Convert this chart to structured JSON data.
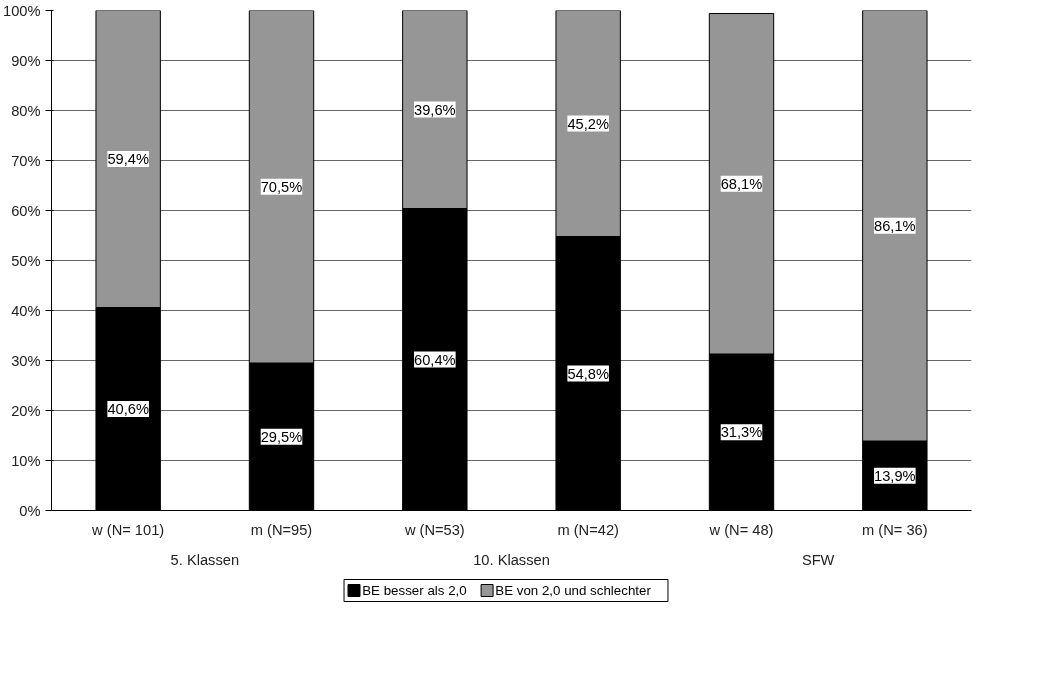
{
  "chart_data": {
    "type": "bar",
    "stacked": true,
    "categories": [
      "w (N= 101)",
      "m (N=95)",
      "w (N=53)",
      "m (N=42)",
      "w (N= 48)",
      "m (N= 36)"
    ],
    "series": [
      {
        "name": "BE besser als 2,0",
        "color": "#000000",
        "values": [
          40.6,
          29.5,
          60.4,
          54.8,
          31.3,
          13.9
        ],
        "value_labels": [
          "40,6%",
          "29,5%",
          "60,4%",
          "54,8%",
          "31,3%",
          "13,9%"
        ]
      },
      {
        "name": "BE von 2,0 und schlechter",
        "color": "#969696",
        "values": [
          59.4,
          70.5,
          39.6,
          45.2,
          68.1,
          86.1
        ],
        "value_labels": [
          "59,4%",
          "70,5%",
          "39,6%",
          "45,2%",
          "68,1%",
          "86,1%"
        ]
      }
    ],
    "annotations": [
      "5. Klassen",
      "10. Klassen",
      "SFW"
    ],
    "ylim": [
      0,
      100
    ],
    "yticks": [
      {
        "value": 0,
        "label": "0%"
      },
      {
        "value": 10,
        "label": "10%"
      },
      {
        "value": 20,
        "label": "20%"
      },
      {
        "value": 30,
        "label": "30%"
      },
      {
        "value": 40,
        "label": "40%"
      },
      {
        "value": 50,
        "label": "50%"
      },
      {
        "value": 60,
        "label": "60%"
      },
      {
        "value": 70,
        "label": "70%"
      },
      {
        "value": 80,
        "label": "80%"
      },
      {
        "value": 90,
        "label": "90%"
      },
      {
        "value": 100,
        "label": "100%"
      }
    ],
    "grid": "y",
    "legend": "bottom"
  }
}
